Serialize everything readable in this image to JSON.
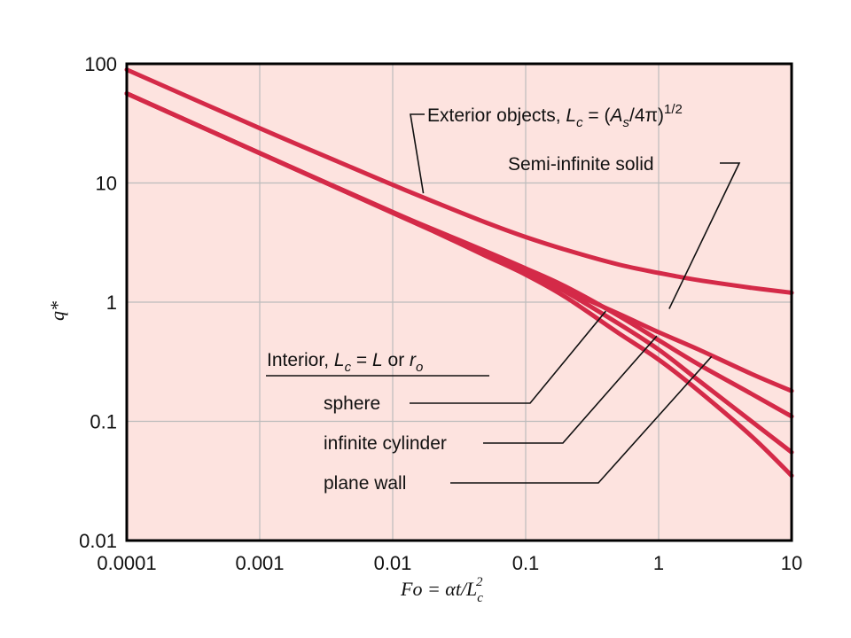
{
  "chart_data": {
    "type": "line",
    "x_scale": "log",
    "y_scale": "log",
    "xlim": [
      0.0001,
      10
    ],
    "ylim": [
      0.01,
      100
    ],
    "grid": true,
    "background_color": "#fde3df",
    "line_color": "#d42a48",
    "x_tick_labels": [
      "0.0001",
      "0.001",
      "0.01",
      "0.1",
      "1",
      "10"
    ],
    "y_tick_labels": [
      "0.01",
      "0.1",
      "1",
      "10",
      "100"
    ],
    "xlabel": "Fo = αt/L",
    "xlabel_sub": "c",
    "xlabel_sup": "2",
    "ylabel": "q*",
    "annotations": {
      "exterior": {
        "prefix": "Exterior objects, ",
        "var": "L",
        "sub": "c",
        "mid": " = (",
        "var2": "A",
        "sub2": "s",
        "tail": "/4π)",
        "sup": "1/2"
      },
      "semi_infinite": "Semi-infinite solid",
      "interior_header": {
        "prefix": "Interior, ",
        "var": "L",
        "sub": "c",
        "mid": " = ",
        "var2": "L",
        "or": " or ",
        "var3": "r",
        "sub3": "o"
      },
      "sphere": "sphere",
      "cylinder": "infinite cylinder",
      "plane_wall": "plane wall"
    },
    "series": [
      {
        "id": "exterior",
        "x": [
          0.0001,
          0.001,
          0.005,
          0.01,
          0.02,
          0.05,
          0.1,
          0.2,
          0.5,
          1,
          2,
          5,
          10
        ],
        "y": [
          89.3,
          28.8,
          13.4,
          9.65,
          7.02,
          4.67,
          3.52,
          2.75,
          2.07,
          1.76,
          1.53,
          1.32,
          1.2
        ]
      },
      {
        "id": "semi-infinite",
        "x": [
          0.0001,
          0.001,
          0.01,
          0.02,
          0.05,
          0.1,
          0.2,
          0.5,
          1,
          2,
          5,
          10
        ],
        "y": [
          56.4,
          17.8,
          5.64,
          3.99,
          2.52,
          1.78,
          1.26,
          0.8,
          0.56,
          0.4,
          0.25,
          0.18
        ]
      },
      {
        "id": "sphere",
        "x": [
          0.0001,
          0.001,
          0.01,
          0.02,
          0.05,
          0.1,
          0.2,
          0.5,
          1,
          2,
          5,
          10
        ],
        "y": [
          56.4,
          17.8,
          5.7,
          4.1,
          2.68,
          1.92,
          1.35,
          0.77,
          0.48,
          0.3,
          0.17,
          0.11
        ]
      },
      {
        "id": "infinite-cylinder",
        "x": [
          0.0001,
          0.001,
          0.01,
          0.02,
          0.05,
          0.1,
          0.2,
          0.5,
          1,
          2,
          5,
          10
        ],
        "y": [
          56.4,
          17.8,
          5.65,
          4.02,
          2.58,
          1.83,
          1.22,
          0.66,
          0.4,
          0.22,
          0.1,
          0.055
        ]
      },
      {
        "id": "plane-wall",
        "x": [
          0.0001,
          0.001,
          0.01,
          0.02,
          0.05,
          0.1,
          0.2,
          0.5,
          1,
          2,
          5,
          10
        ],
        "y": [
          56.4,
          17.8,
          5.6,
          3.96,
          2.45,
          1.7,
          1.1,
          0.55,
          0.33,
          0.18,
          0.075,
          0.035
        ]
      }
    ]
  }
}
